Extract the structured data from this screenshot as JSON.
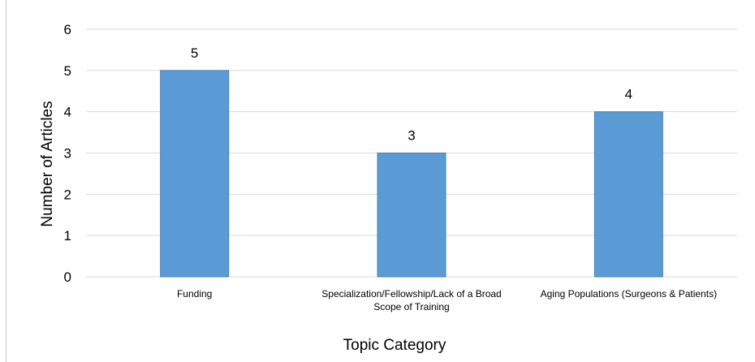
{
  "chart_data": {
    "type": "bar",
    "categories": [
      [
        "Funding"
      ],
      [
        "Specialization/Fellowship/Lack of a Broad",
        "Scope of Training"
      ],
      [
        "Aging Populations (Surgeons & Patients)"
      ]
    ],
    "values": [
      5,
      3,
      4
    ],
    "data_labels": [
      "5",
      "3",
      "4"
    ],
    "xlabel": "Topic Category",
    "ylabel": "Number of Articles",
    "ylim": [
      0,
      6
    ],
    "yticks": [
      "0",
      "1",
      "2",
      "3",
      "4",
      "5",
      "6"
    ],
    "grid": true,
    "legend": "none",
    "bar_color": "#5b9bd5",
    "bar_edge_color": "#4a7fb5",
    "grid_color": "#d9d9d9"
  }
}
